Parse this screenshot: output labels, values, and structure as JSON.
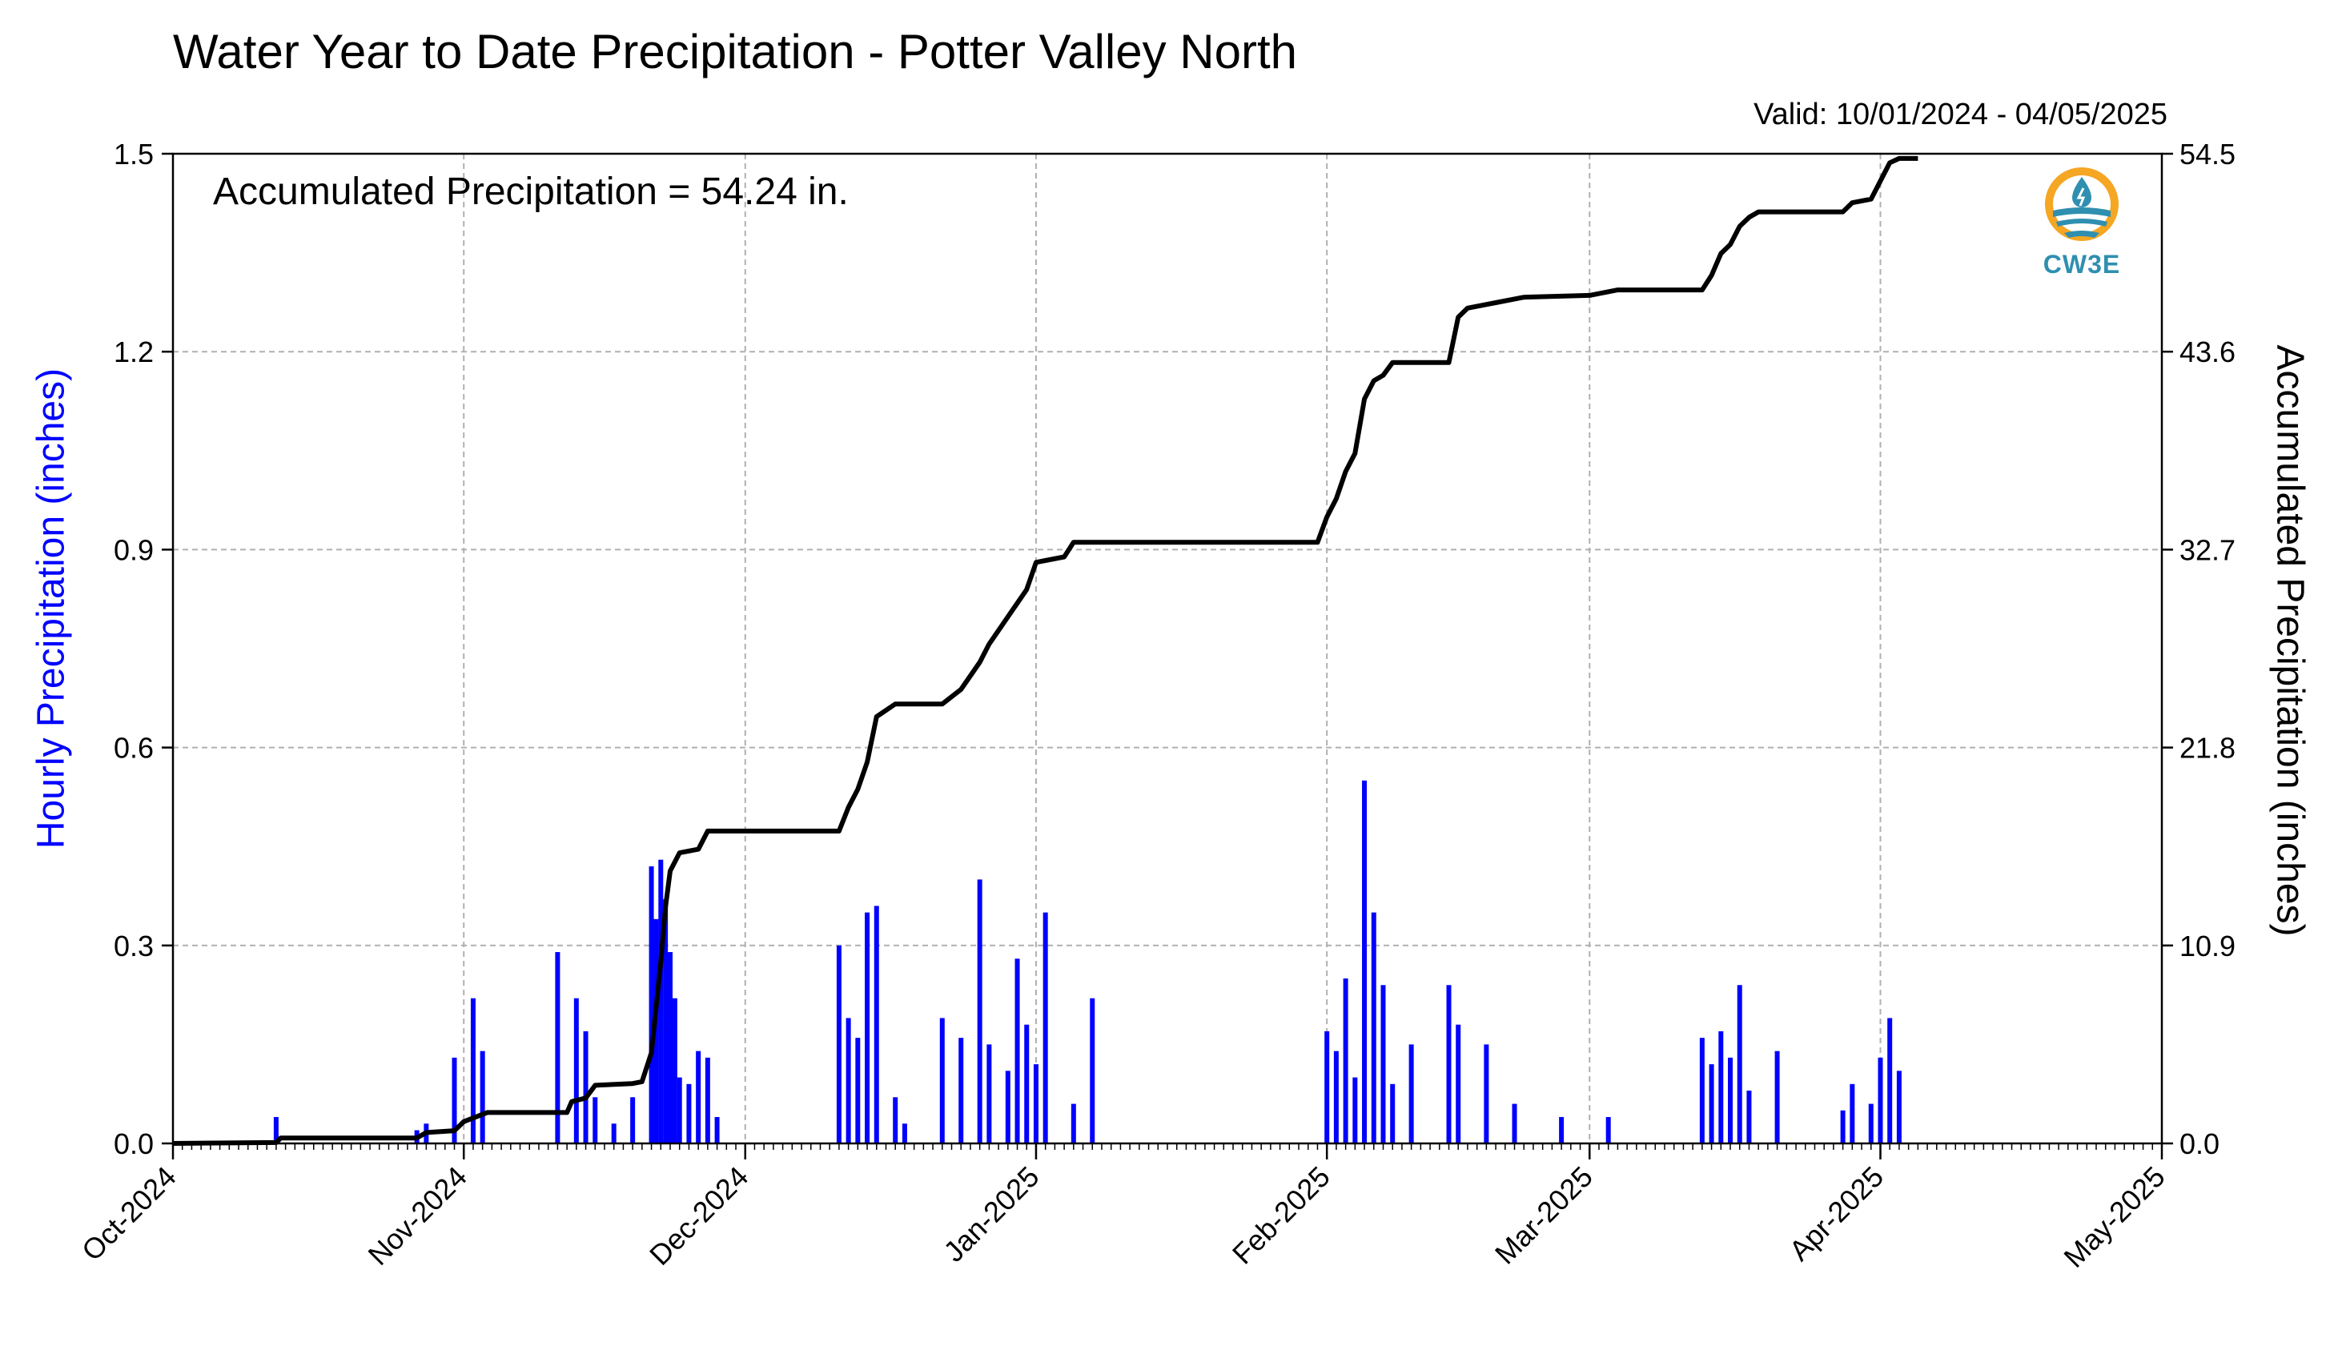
{
  "title": "Water Year to Date Precipitation - Potter Valley North",
  "valid_label": "Valid: 10/01/2024 - 04/05/2025",
  "accumulated_label": "Accumulated Precipitation = 54.24 in.",
  "logo": {
    "icon": "water-drop-sun-logo-icon",
    "text": "CW3E"
  },
  "colors": {
    "hourly": "#0000ff",
    "accumulated": "#000000",
    "grid": "#b0b0b0",
    "logo_orange": "#f5a623",
    "logo_blue": "#2f8fb0"
  },
  "chart_data": {
    "type": "bar",
    "grid": true,
    "xlabel": "",
    "xlim": [
      "2024-10-01",
      "2025-05-01"
    ],
    "x_ticks": [
      "Oct-2024",
      "Nov-2024",
      "Dec-2024",
      "Jan-2025",
      "Feb-2025",
      "Mar-2025",
      "Apr-2025",
      "May-2025"
    ],
    "y_left": {
      "label": "Hourly Precipitation (inches)",
      "lim": [
        0,
        1.5
      ],
      "ticks": [
        "0.0",
        "0.3",
        "0.6",
        "0.9",
        "1.2",
        "1.5"
      ]
    },
    "y_right": {
      "label": "Accumulated Precipitation (inches)",
      "lim": [
        0,
        54.5
      ],
      "ticks": [
        "0.0",
        "10.9",
        "21.8",
        "32.7",
        "43.6",
        "54.5"
      ]
    },
    "series": [
      {
        "name": "Hourly Precipitation (inches)",
        "type": "bar",
        "axis": "left",
        "points": [
          [
            "2024-10-12",
            0.04
          ],
          [
            "2024-10-27",
            0.02
          ],
          [
            "2024-10-28",
            0.03
          ],
          [
            "2024-10-31",
            0.13
          ],
          [
            "2024-11-02",
            0.22
          ],
          [
            "2024-11-03",
            0.14
          ],
          [
            "2024-11-11",
            0.29
          ],
          [
            "2024-11-13",
            0.22
          ],
          [
            "2024-11-14",
            0.17
          ],
          [
            "2024-11-15",
            0.07
          ],
          [
            "2024-11-17",
            0.03
          ],
          [
            "2024-11-19",
            0.07
          ],
          [
            "2024-11-21",
            0.42
          ],
          [
            "2024-11-21.5",
            0.34
          ],
          [
            "2024-11-22",
            0.43
          ],
          [
            "2024-11-22.5",
            0.37
          ],
          [
            "2024-11-23",
            0.29
          ],
          [
            "2024-11-23.5",
            0.22
          ],
          [
            "2024-11-24",
            0.1
          ],
          [
            "2024-11-25",
            0.09
          ],
          [
            "2024-11-26",
            0.14
          ],
          [
            "2024-11-27",
            0.13
          ],
          [
            "2024-11-28",
            0.04
          ],
          [
            "2024-12-11",
            0.3
          ],
          [
            "2024-12-12",
            0.19
          ],
          [
            "2024-12-13",
            0.16
          ],
          [
            "2024-12-14",
            0.35
          ],
          [
            "2024-12-15",
            0.36
          ],
          [
            "2024-12-17",
            0.07
          ],
          [
            "2024-12-18",
            0.03
          ],
          [
            "2024-12-22",
            0.19
          ],
          [
            "2024-12-24",
            0.16
          ],
          [
            "2024-12-26",
            0.4
          ],
          [
            "2024-12-27",
            0.15
          ],
          [
            "2024-12-29",
            0.11
          ],
          [
            "2024-12-30",
            0.28
          ],
          [
            "2024-12-31",
            0.18
          ],
          [
            "2025-01-01",
            0.12
          ],
          [
            "2025-01-02",
            0.35
          ],
          [
            "2025-01-05",
            0.06
          ],
          [
            "2025-01-07",
            0.22
          ],
          [
            "2025-02-01",
            0.17
          ],
          [
            "2025-02-02",
            0.14
          ],
          [
            "2025-02-03",
            0.25
          ],
          [
            "2025-02-04",
            0.1
          ],
          [
            "2025-02-05",
            0.55
          ],
          [
            "2025-02-06",
            0.35
          ],
          [
            "2025-02-07",
            0.24
          ],
          [
            "2025-02-08",
            0.09
          ],
          [
            "2025-02-10",
            0.15
          ],
          [
            "2025-02-14",
            0.24
          ],
          [
            "2025-02-15",
            0.18
          ],
          [
            "2025-02-18",
            0.15
          ],
          [
            "2025-02-21",
            0.06
          ],
          [
            "2025-02-26",
            0.04
          ],
          [
            "2025-03-03",
            0.04
          ],
          [
            "2025-03-13",
            0.16
          ],
          [
            "2025-03-14",
            0.12
          ],
          [
            "2025-03-15",
            0.17
          ],
          [
            "2025-03-16",
            0.13
          ],
          [
            "2025-03-17",
            0.24
          ],
          [
            "2025-03-18",
            0.08
          ],
          [
            "2025-03-21",
            0.14
          ],
          [
            "2025-03-28",
            0.05
          ],
          [
            "2025-03-29",
            0.09
          ],
          [
            "2025-03-31",
            0.06
          ],
          [
            "2025-04-01",
            0.13
          ],
          [
            "2025-04-02",
            0.19
          ],
          [
            "2025-04-03",
            0.11
          ]
        ]
      },
      {
        "name": "Accumulated Precipitation (inches)",
        "type": "line",
        "axis": "right",
        "points": [
          [
            "2024-10-01",
            0.0
          ],
          [
            "2024-10-12",
            0.05
          ],
          [
            "2024-10-12.5",
            0.3
          ],
          [
            "2024-10-27",
            0.3
          ],
          [
            "2024-10-28",
            0.6
          ],
          [
            "2024-10-31",
            0.7
          ],
          [
            "2024-11-01",
            1.2
          ],
          [
            "2024-11-03",
            1.6
          ],
          [
            "2024-11-03.5",
            1.7
          ],
          [
            "2024-11-12",
            1.7
          ],
          [
            "2024-11-12.5",
            2.3
          ],
          [
            "2024-11-14",
            2.5
          ],
          [
            "2024-11-15",
            3.2
          ],
          [
            "2024-11-19",
            3.3
          ],
          [
            "2024-11-20",
            3.4
          ],
          [
            "2024-11-21",
            5.0
          ],
          [
            "2024-11-22",
            10.0
          ],
          [
            "2024-11-22.5",
            13.0
          ],
          [
            "2024-11-23",
            15.0
          ],
          [
            "2024-11-24",
            16.0
          ],
          [
            "2024-11-26",
            16.2
          ],
          [
            "2024-11-27",
            17.2
          ],
          [
            "2024-12-11",
            17.2
          ],
          [
            "2024-12-12",
            18.5
          ],
          [
            "2024-12-13",
            19.5
          ],
          [
            "2024-12-14",
            21.0
          ],
          [
            "2024-12-15",
            23.5
          ],
          [
            "2024-12-17",
            24.2
          ],
          [
            "2024-12-22",
            24.2
          ],
          [
            "2024-12-24",
            25.0
          ],
          [
            "2024-12-26",
            26.5
          ],
          [
            "2024-12-27",
            27.5
          ],
          [
            "2024-12-29",
            29.0
          ],
          [
            "2024-12-31",
            30.5
          ],
          [
            "2025-01-01",
            32.0
          ],
          [
            "2025-01-02",
            32.1
          ],
          [
            "2025-01-04",
            32.3
          ],
          [
            "2025-01-05",
            33.1
          ],
          [
            "2025-01-31",
            33.1
          ],
          [
            "2025-02-01",
            34.5
          ],
          [
            "2025-02-02",
            35.5
          ],
          [
            "2025-02-03",
            37.0
          ],
          [
            "2025-02-04",
            38.0
          ],
          [
            "2025-02-05",
            41.0
          ],
          [
            "2025-02-06",
            42.0
          ],
          [
            "2025-02-07",
            42.3
          ],
          [
            "2025-02-08",
            43.0
          ],
          [
            "2025-02-14",
            43.0
          ],
          [
            "2025-02-15",
            45.5
          ],
          [
            "2025-02-16",
            46.0
          ],
          [
            "2025-02-19",
            46.3
          ],
          [
            "2025-02-22",
            46.6
          ],
          [
            "2025-03-01",
            46.7
          ],
          [
            "2025-03-04",
            47.0
          ],
          [
            "2025-03-13",
            47.0
          ],
          [
            "2025-03-14",
            47.8
          ],
          [
            "2025-03-15",
            49.0
          ],
          [
            "2025-03-16",
            49.5
          ],
          [
            "2025-03-17",
            50.5
          ],
          [
            "2025-03-18",
            51.0
          ],
          [
            "2025-03-19",
            51.3
          ],
          [
            "2025-03-21",
            51.3
          ],
          [
            "2025-03-28",
            51.3
          ],
          [
            "2025-03-29",
            51.8
          ],
          [
            "2025-03-31",
            52.0
          ],
          [
            "2025-04-01",
            53.0
          ],
          [
            "2025-04-02",
            54.0
          ],
          [
            "2025-04-03",
            54.24
          ],
          [
            "2025-04-05",
            54.24
          ]
        ]
      }
    ]
  }
}
